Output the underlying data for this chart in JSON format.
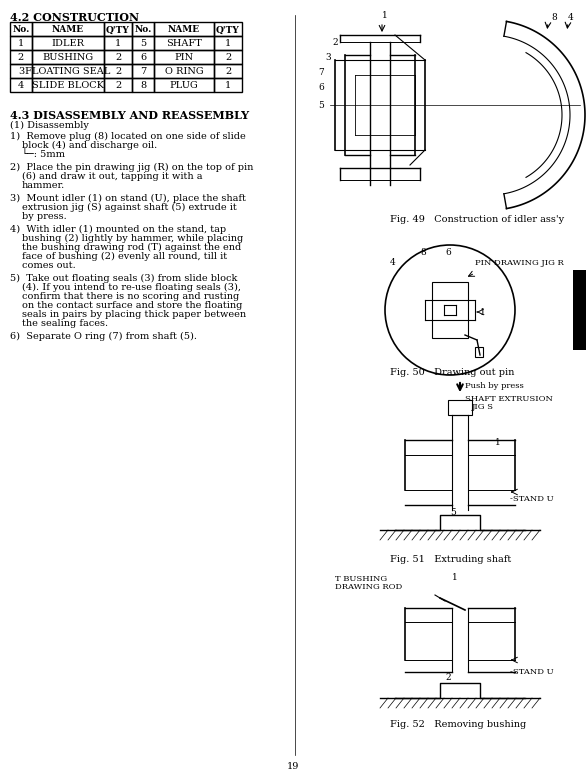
{
  "title_section": "4.2 CONSTRUCTION",
  "table_headers": [
    "No.",
    "NAME",
    "Q'TY",
    "No.",
    "NAME",
    "Q'TY"
  ],
  "table_rows": [
    [
      "1",
      "IDLER",
      "1",
      "5",
      "SHAFT",
      "1"
    ],
    [
      "2",
      "BUSHING",
      "2",
      "6",
      "PIN",
      "2"
    ],
    [
      "3",
      "FLOATING SEAL",
      "2",
      "7",
      "O RING",
      "2"
    ],
    [
      "4",
      "SLIDE BLOCK",
      "2",
      "8",
      "PLUG",
      "1"
    ]
  ],
  "section_43": "4.3 DISASSEMBLY AND REASSEMBLY",
  "subsection_1": "(1) Disassembly",
  "steps": [
    "1)  Remove plug (8) located on one side of slide\n    block (4) and discharge oil.\n    └─: 5mm",
    "2)  Place the pin drawing jig (R) on the top of pin\n    (6) and draw it out, tapping it with a\n    hammer.",
    "3)  Mount idler (1) on stand (U), place the shaft\n    extrusion jig (S) against shaft (5) extrude it\n    by press.",
    "4)  With idler (1) mounted on the stand, tap\n    bushing (2) lightly by hammer, while placing\n    the bushing drawing rod (T) against the end\n    face of bushing (2) evenly all round, till it\n    comes out.",
    "5)  Take out floating seals (3) from slide block\n    (4). If you intend to re-use floating seals (3),\n    confirm that there is no scoring and rusting\n    on the contact surface and store the floating\n    seals in pairs by placing thick paper between\n    the sealing faces.",
    "6)  Separate O ring (7) from shaft (5)."
  ],
  "fig49_caption": "Fig. 49   Construction of idler ass'y",
  "fig50_caption": "Fig. 50   Drawing out pin",
  "fig51_caption": "Fig. 51   Extruding shaft",
  "fig52_caption": "Fig. 52   Removing bushing",
  "fig51_labels": [
    "Push by press",
    "SHAFT EXTRUSION\nJIG S",
    "1",
    "5",
    "STAND U"
  ],
  "fig52_labels": [
    "T BUSHING\nDRAWING ROD",
    "1",
    "2",
    "STAND U"
  ],
  "page_number": "19",
  "background_color": "#ffffff",
  "text_color": "#000000",
  "font_size_title": 8,
  "font_size_body": 7,
  "font_size_small": 6.5
}
